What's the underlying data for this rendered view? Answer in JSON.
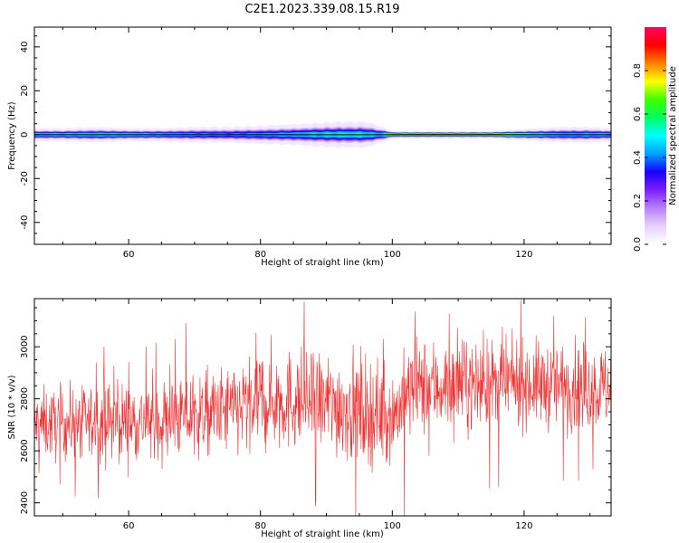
{
  "title": "C2E1.2023.339.08.15.R19",
  "chart_data": [
    {
      "type": "heatmap",
      "xlabel": "Height of straight line (km)",
      "ylabel": "Frequency (Hz)",
      "xlim": [
        45.7,
        133.2
      ],
      "ylim": [
        -50,
        49
      ],
      "xticks": [
        60,
        80,
        100,
        120
      ],
      "yticks": [
        40,
        20,
        0,
        -20,
        -40
      ],
      "colorbar": {
        "label": "Normalized spectral amplitude",
        "range": [
          0,
          1
        ],
        "ticks": [
          "0.0",
          "0.2",
          "0.4",
          "0.6",
          "0.8"
        ],
        "colormap": [
          "#ffffff",
          "#e6d2ff",
          "#b980ff",
          "#7a20ff",
          "#1a00ff",
          "#00a0ff",
          "#00ffff",
          "#00ff60",
          "#40ff00",
          "#ffff00",
          "#ff8000",
          "#ff0000",
          "#ff0060"
        ]
      },
      "band_profile": {
        "heights_km": [
          45.7,
          50,
          55,
          60,
          65,
          70,
          75,
          80,
          85,
          88,
          92,
          96,
          98,
          100,
          105,
          110,
          115,
          118,
          122,
          126,
          130,
          133.2
        ],
        "peak_amplitude": [
          0.6,
          0.62,
          0.6,
          0.62,
          0.58,
          0.52,
          0.5,
          0.52,
          0.55,
          0.58,
          0.6,
          0.6,
          0.55,
          0.92,
          1.0,
          0.95,
          0.98,
          0.85,
          0.65,
          0.55,
          0.58,
          0.6
        ],
        "half_width_hz": [
          2.5,
          2.5,
          3,
          2.5,
          2.5,
          3,
          3,
          3.5,
          4,
          4.5,
          5,
          5,
          3.5,
          1.5,
          1.5,
          1.5,
          1.5,
          2,
          2.5,
          3,
          3,
          2.5
        ]
      }
    },
    {
      "type": "line",
      "xlabel": "Height of straight line (km)",
      "ylabel": "SNR (10 * v/v)",
      "xlim": [
        45.7,
        133.2
      ],
      "ylim": [
        2350,
        3185
      ],
      "xticks": [
        60,
        80,
        100,
        120
      ],
      "yticks": [
        2400,
        2600,
        2800,
        3000
      ],
      "color": "#f03232",
      "profile": {
        "heights_km": [
          45.7,
          55,
          65,
          72,
          78,
          80,
          88,
          95,
          100,
          103,
          110,
          120,
          125,
          133.2
        ],
        "mean_snr": [
          2700,
          2710,
          2720,
          2740,
          2770,
          2800,
          2790,
          2760,
          2730,
          2840,
          2850,
          2860,
          2850,
          2840
        ],
        "spread": [
          80,
          85,
          90,
          95,
          110,
          120,
          110,
          130,
          100,
          110,
          100,
          95,
          100,
          95
        ]
      }
    }
  ]
}
